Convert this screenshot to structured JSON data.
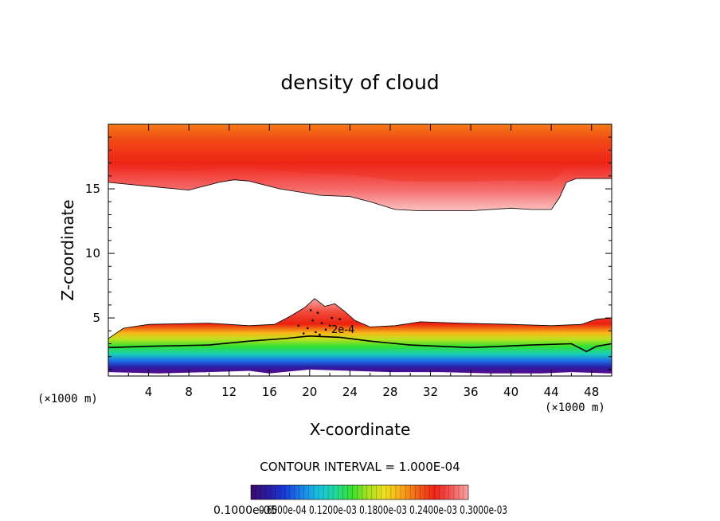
{
  "chart_data": {
    "type": "contour",
    "title": "density of cloud",
    "xlabel": "X-coordinate",
    "ylabel": "Z-coordinate",
    "x_unit": "(×1000 m)",
    "y_unit": "(×1000 m)",
    "xlim": [
      0,
      50
    ],
    "ylim": [
      0.5,
      20
    ],
    "x_ticks": [
      4,
      8,
      12,
      16,
      20,
      24,
      28,
      32,
      36,
      40,
      44,
      48
    ],
    "y_ticks": [
      5,
      10,
      15
    ],
    "contour_interval_text": "CONTOUR INTERVAL = 1.000E-04",
    "contour_label": "2e-4",
    "colorbar_labels_text": "0.1000e-05",
    "colorbar_overlap_text": "0.6000e-04 0.1200e-03 0.1800e-03 0.2400e-03 0.3000e-03",
    "colorbar_stops": [
      "#3b0a6b",
      "#2a1aa0",
      "#1a3ad8",
      "#1a80e8",
      "#18c0e0",
      "#20d8a0",
      "#38e030",
      "#a8e020",
      "#f0e020",
      "#f8a818",
      "#f06018",
      "#ee2418",
      "#f45a5a",
      "#f8a6a6"
    ],
    "upper_layer": {
      "lower_boundary_z": [
        [
          0,
          15.5
        ],
        [
          4,
          15.2
        ],
        [
          8,
          14.9
        ],
        [
          11,
          15.5
        ],
        [
          12.5,
          15.7
        ],
        [
          14,
          15.6
        ],
        [
          17,
          15.0
        ],
        [
          21,
          14.5
        ],
        [
          24,
          14.4
        ],
        [
          26,
          14.0
        ],
        [
          28.5,
          13.4
        ],
        [
          31,
          13.3
        ],
        [
          36,
          13.3
        ],
        [
          40,
          13.5
        ],
        [
          42,
          13.4
        ],
        [
          44,
          13.4
        ],
        [
          44.8,
          14.3
        ],
        [
          45.5,
          15.5
        ],
        [
          46.5,
          15.8
        ],
        [
          50,
          15.8
        ]
      ],
      "top_z": 20,
      "core_z": 17.8
    },
    "lower_layer": {
      "top_boundary_z": [
        [
          0,
          3.4
        ],
        [
          1.5,
          4.2
        ],
        [
          4,
          4.5
        ],
        [
          10,
          4.6
        ],
        [
          14,
          4.4
        ],
        [
          16.5,
          4.5
        ],
        [
          18,
          5.1
        ],
        [
          19.5,
          5.8
        ],
        [
          20.5,
          6.5
        ],
        [
          21.5,
          5.9
        ],
        [
          22.5,
          6.1
        ],
        [
          23.5,
          5.5
        ],
        [
          24.5,
          4.8
        ],
        [
          26,
          4.3
        ],
        [
          28.5,
          4.4
        ],
        [
          31,
          4.7
        ],
        [
          35,
          4.6
        ],
        [
          40,
          4.5
        ],
        [
          44,
          4.4
        ],
        [
          47,
          4.5
        ],
        [
          48.5,
          4.9
        ],
        [
          50,
          5.0
        ]
      ],
      "contour_2e4_z": [
        [
          0,
          2.7
        ],
        [
          4,
          2.8
        ],
        [
          10,
          2.9
        ],
        [
          14,
          3.2
        ],
        [
          17.5,
          3.4
        ],
        [
          20,
          3.6
        ],
        [
          23,
          3.5
        ],
        [
          26,
          3.2
        ],
        [
          30,
          2.9
        ],
        [
          36,
          2.7
        ],
        [
          42,
          2.9
        ],
        [
          46,
          3.0
        ],
        [
          47.5,
          2.4
        ],
        [
          48.5,
          2.8
        ],
        [
          50,
          3.0
        ]
      ],
      "bottom_z": [
        [
          0,
          0.8
        ],
        [
          5,
          0.7
        ],
        [
          10,
          0.8
        ],
        [
          14,
          0.9
        ],
        [
          16,
          0.7
        ],
        [
          20,
          1.0
        ],
        [
          24,
          0.9
        ],
        [
          28,
          0.8
        ],
        [
          33,
          0.8
        ],
        [
          38,
          0.7
        ],
        [
          43,
          0.7
        ],
        [
          46,
          0.8
        ],
        [
          50,
          0.7
        ]
      ]
    }
  }
}
